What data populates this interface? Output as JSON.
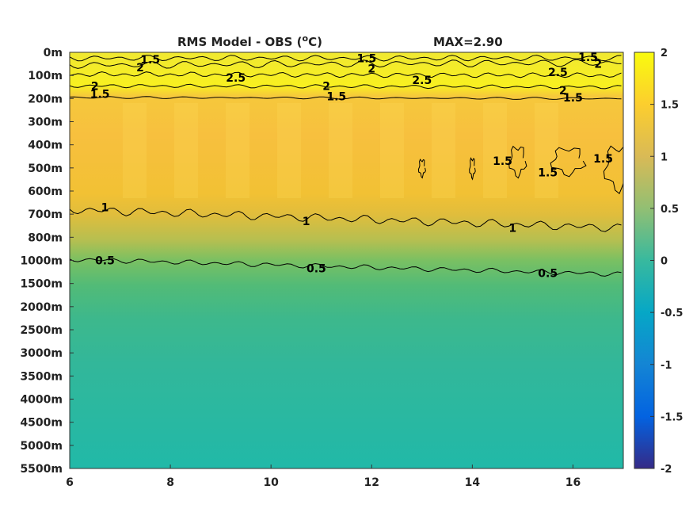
{
  "chart_data": {
    "type": "heatmap",
    "title": "RMS Model - OBS (°C)",
    "title_prefix": "RMS Model - OBS (",
    "title_sup": "o",
    "title_suffix": "C)",
    "max_label": "MAX=2.90",
    "xlim": [
      6,
      17
    ],
    "x_ticks": [
      6,
      8,
      10,
      12,
      14,
      16
    ],
    "x_tick_labels": [
      "6",
      "8",
      "10",
      "12",
      "14",
      "16"
    ],
    "y_tick_labels": [
      "0m",
      "100m",
      "200m",
      "300m",
      "400m",
      "500m",
      "600m",
      "700m",
      "800m",
      "1000m",
      "1500m",
      "2000m",
      "2500m",
      "3000m",
      "3500m",
      "4000m",
      "4500m",
      "5000m",
      "5500m"
    ],
    "color_range": [
      -2,
      2
    ],
    "colorbar_ticks": [
      2,
      1.5,
      1,
      0.5,
      0,
      -0.5,
      -1,
      -1.5,
      -2
    ],
    "colorbar_tick_labels": [
      "2",
      "1.5",
      "1",
      "0.5",
      "0",
      "-0.5",
      "-1",
      "-1.5",
      "-2"
    ],
    "colormap": "parula",
    "depth_profile_rms": [
      1.9,
      2.2,
      1.4,
      1.25,
      1.25,
      1.22,
      1.2,
      0.95,
      0.85,
      0.55,
      0.42,
      0.33,
      0.28,
      0.24,
      0.22,
      0.22,
      0.2,
      0.18,
      0.17
    ],
    "contour_levels": [
      0.5,
      1,
      1.5,
      2,
      2.5
    ],
    "contour_labels": [
      {
        "text": "1.5",
        "x": 7.6,
        "depth_index": 0.3
      },
      {
        "text": "2",
        "x": 7.4,
        "depth_index": 0.65
      },
      {
        "text": "1.5",
        "x": 11.9,
        "depth_index": 0.25
      },
      {
        "text": "2",
        "x": 12.0,
        "depth_index": 0.7
      },
      {
        "text": "1.5",
        "x": 16.3,
        "depth_index": 0.2
      },
      {
        "text": "2",
        "x": 16.5,
        "depth_index": 0.5
      },
      {
        "text": "2",
        "x": 6.5,
        "depth_index": 1.45
      },
      {
        "text": "2.5",
        "x": 9.3,
        "depth_index": 1.1
      },
      {
        "text": "2.5",
        "x": 13.0,
        "depth_index": 1.2
      },
      {
        "text": "2.5",
        "x": 15.7,
        "depth_index": 0.85
      },
      {
        "text": "2",
        "x": 11.1,
        "depth_index": 1.45
      },
      {
        "text": "2",
        "x": 15.8,
        "depth_index": 1.65
      },
      {
        "text": "1.5",
        "x": 6.6,
        "depth_index": 1.8
      },
      {
        "text": "1.5",
        "x": 11.3,
        "depth_index": 1.9
      },
      {
        "text": "1.5",
        "x": 16.0,
        "depth_index": 1.95
      },
      {
        "text": "1.5",
        "x": 14.6,
        "depth_index": 4.7
      },
      {
        "text": "1.5",
        "x": 15.5,
        "depth_index": 5.2
      },
      {
        "text": "1.5",
        "x": 16.6,
        "depth_index": 4.6
      },
      {
        "text": "1",
        "x": 6.7,
        "depth_index": 6.7
      },
      {
        "text": "1",
        "x": 10.7,
        "depth_index": 7.3
      },
      {
        "text": "1",
        "x": 14.8,
        "depth_index": 7.6
      },
      {
        "text": "0.5",
        "x": 6.7,
        "depth_index": 9.0
      },
      {
        "text": "0.5",
        "x": 10.9,
        "depth_index": 9.35
      },
      {
        "text": "0.5",
        "x": 15.5,
        "depth_index": 9.55
      }
    ]
  }
}
